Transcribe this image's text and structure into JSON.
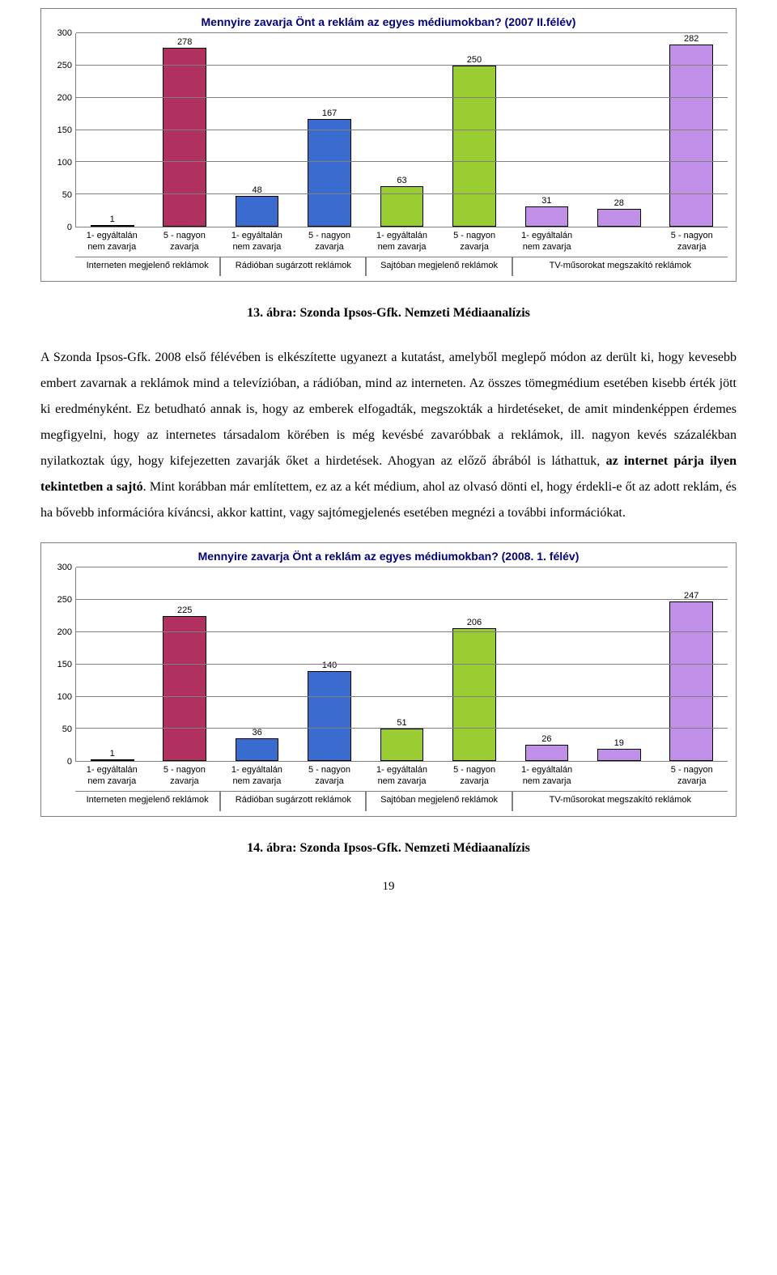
{
  "chart1": {
    "title": "Mennyire zavarja Önt a reklám az egyes médiumokban? (2007 II.félév)",
    "title_color": "#000080",
    "ylim": [
      0,
      300
    ],
    "ytick_step": 50,
    "yticks": [
      0,
      50,
      100,
      150,
      200,
      250,
      300
    ],
    "background_color": "#ffffff",
    "grid_color": "#808080",
    "bar_border": "#000000",
    "categories": [
      "1- egyáltalán nem zavarja",
      "5 - nagyon zavarja",
      "1- egyáltalán nem zavarja",
      "5 - nagyon zavarja",
      "1- egyáltalán nem zavarja",
      "5 - nagyon zavarja",
      "1- egyáltalán nem zavarja",
      "5 - nagyon zavarja"
    ],
    "groups": [
      "Interneten megjelenő reklámok",
      "Rádióban sugárzott reklámok",
      "Sajtóban megjelenő reklámok",
      "TV-műsorokat megszakító reklámok"
    ],
    "group_colors": [
      "#b03060",
      "#3a6cd0",
      "#9acd32",
      "#c090e8"
    ],
    "values": [
      1,
      278,
      48,
      167,
      63,
      250,
      31,
      28,
      282
    ],
    "bars": [
      {
        "value": 1,
        "color": "#b03060"
      },
      {
        "value": 278,
        "color": "#b03060"
      },
      {
        "value": 48,
        "color": "#3a6cd0"
      },
      {
        "value": 167,
        "color": "#3a6cd0"
      },
      {
        "value": 63,
        "color": "#9acd32"
      },
      {
        "value": 250,
        "color": "#9acd32"
      },
      {
        "value": 31,
        "color": "#c090e8"
      },
      {
        "value": 28,
        "color": "#c090e8"
      },
      {
        "value": 282,
        "color": "#c090e8"
      }
    ],
    "x_span": [
      1,
      1,
      1,
      1,
      1,
      1,
      1,
      1,
      1
    ],
    "group_span": [
      2,
      2,
      2,
      3
    ]
  },
  "caption1": "13. ábra: Szonda Ipsos-Gfk. Nemzeti Médiaanalízis",
  "paragraph": {
    "p1a": "A Szonda Ipsos-Gfk. 2008 első félévében is elkészítette ugyanezt a kutatást, amelyből meglepő módon az derült ki, hogy kevesebb embert zavarnak a reklámok mind a televízióban, a rádióban, mind az interneten. Az összes tömegmédium esetében kisebb érték jött ki eredményként. Ez betudható annak is, hogy az emberek elfogadták, megszokták a hirdetéseket, de amit mindenképpen érdemes megfigyelni, hogy az internetes társadalom körében is még kevésbé zavaróbbak a reklámok, ill. nagyon kevés százalékban nyilatkoztak úgy, hogy kifejezetten zavarják őket a hirdetések. Ahogyan az előző ábrából is láthattuk, ",
    "p1b_bold": "az internet párja ilyen tekintetben a sajtó",
    "p1c": ". Mint korábban már említettem, ez az a két médium, ahol az olvasó dönti el, hogy érdekli-e őt az adott reklám, és ha bővebb információra kíváncsi, akkor kattint, vagy sajtómegjelenés esetében megnézi a további információkat."
  },
  "chart2": {
    "title": "Mennyire zavarja Önt a reklám az egyes médiumokban? (2008. 1. félév)",
    "title_color": "#000080",
    "ylim": [
      0,
      300
    ],
    "ytick_step": 50,
    "yticks": [
      0,
      50,
      100,
      150,
      200,
      250,
      300
    ],
    "background_color": "#ffffff",
    "grid_color": "#808080",
    "bar_border": "#000000",
    "categories": [
      "1- egyáltalán nem zavarja",
      "5 - nagyon zavarja",
      "1- egyáltalán nem zavarja",
      "5 - nagyon zavarja",
      "1- egyáltalán nem zavarja",
      "5 - nagyon zavarja",
      "1- egyáltalán nem zavarja",
      "5 - nagyon zavarja"
    ],
    "groups": [
      "Interneten megjelenő reklámok",
      "Rádióban sugárzott reklámok",
      "Sajtóban megjelenő reklámok",
      "TV-műsorokat megszakító reklámok"
    ],
    "group_colors": [
      "#b03060",
      "#3a6cd0",
      "#9acd32",
      "#c090e8"
    ],
    "bars": [
      {
        "value": 1,
        "color": "#b03060"
      },
      {
        "value": 225,
        "color": "#b03060"
      },
      {
        "value": 36,
        "color": "#3a6cd0"
      },
      {
        "value": 140,
        "color": "#3a6cd0"
      },
      {
        "value": 51,
        "color": "#9acd32"
      },
      {
        "value": 206,
        "color": "#9acd32"
      },
      {
        "value": 26,
        "color": "#c090e8"
      },
      {
        "value": 19,
        "color": "#c090e8"
      },
      {
        "value": 247,
        "color": "#c090e8"
      }
    ],
    "x_span": [
      1,
      1,
      1,
      1,
      1,
      1,
      1,
      1,
      1
    ],
    "group_span": [
      2,
      2,
      2,
      3
    ]
  },
  "caption2": "14. ábra: Szonda Ipsos-Gfk. Nemzeti Médiaanalízis",
  "page_number": "19"
}
